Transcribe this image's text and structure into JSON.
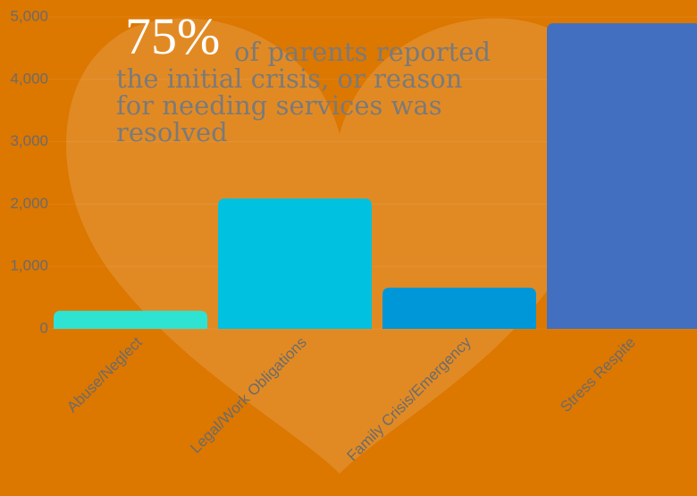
{
  "chart_data": {
    "type": "bar",
    "categories": [
      "Abuse/Neglect",
      "Legal/Work Obligations",
      "Family Crisis/Emergency",
      "Stress Respite"
    ],
    "values": [
      290,
      2090,
      660,
      4900
    ],
    "colors": [
      "#2fe3d3",
      "#00c1e0",
      "#0097d9",
      "#426fc0"
    ],
    "ylim": [
      0,
      5000
    ],
    "yticks": [
      0,
      {
        "value": 1000,
        "label": "1,000"
      },
      {
        "value": 2000,
        "label": "2,000"
      },
      {
        "value": 3000,
        "label": "3,000"
      },
      {
        "value": 4000,
        "label": "4,000"
      },
      {
        "value": 5000,
        "label": "5,000"
      }
    ],
    "grid": true,
    "annotation": {
      "highlight": "75%",
      "lines": [
        "of parents reported",
        "the initial crisis, or reason",
        "for needing  services was",
        "resolved"
      ]
    }
  }
}
